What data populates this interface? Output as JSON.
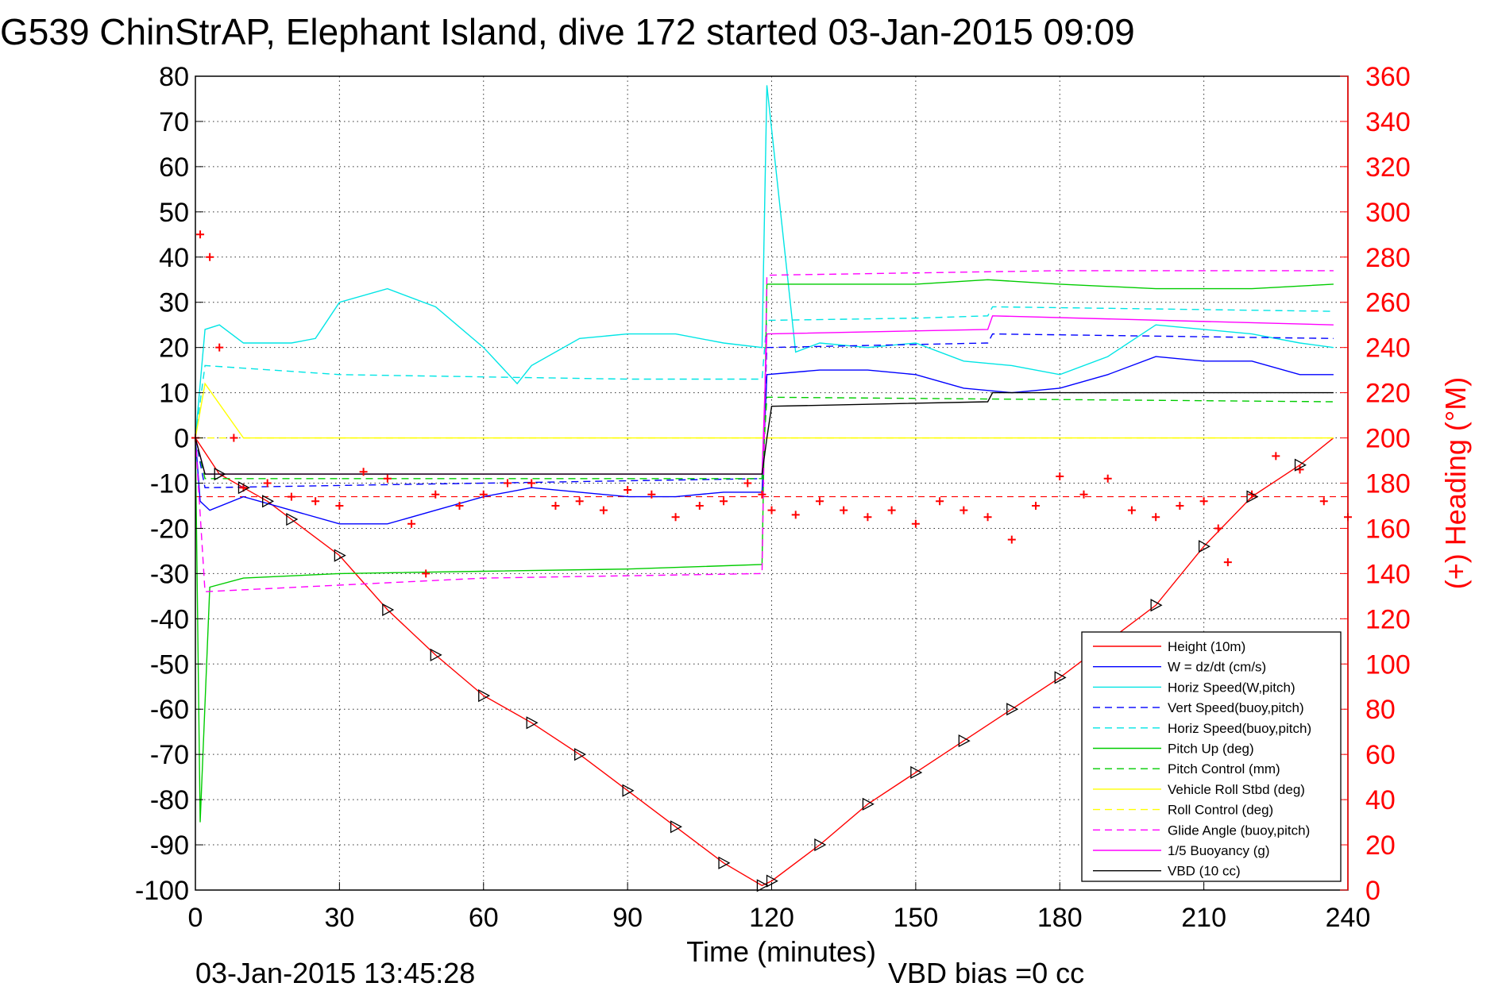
{
  "chart_data": {
    "type": "line",
    "title": "G539 ChinStrAP, Elephant Island, dive 172 started 03-Jan-2015 09:09",
    "xlabel": "Time (minutes)",
    "ylabel_right": "(+) Heading (°M)",
    "footer_left": "03-Jan-2015 13:45:28",
    "footer_right": "VBD bias =0 cc",
    "xlim": [
      0,
      240
    ],
    "ylim": [
      -100,
      80
    ],
    "y2lim": [
      0,
      360
    ],
    "x_ticks": [
      "0",
      "30",
      "60",
      "90",
      "120",
      "150",
      "180",
      "210",
      "240"
    ],
    "y_ticks": [
      "80",
      "70",
      "60",
      "50",
      "40",
      "30",
      "20",
      "10",
      "0",
      "-10",
      "-20",
      "-30",
      "-40",
      "-50",
      "-60",
      "-70",
      "-80",
      "-90",
      "-100"
    ],
    "y2_ticks": [
      "360",
      "340",
      "320",
      "300",
      "280",
      "260",
      "240",
      "220",
      "200",
      "180",
      "160",
      "140",
      "120",
      "100",
      "80",
      "60",
      "40",
      "20",
      "0"
    ],
    "grid": true,
    "legend_position": "bottom-right",
    "series": [
      {
        "name": "Height (10m)",
        "color": "#ff0000",
        "style": "solid",
        "x": [
          0,
          5,
          10,
          15,
          20,
          30,
          40,
          50,
          60,
          70,
          80,
          90,
          100,
          110,
          118,
          120,
          130,
          140,
          150,
          160,
          170,
          180,
          190,
          200,
          210,
          220,
          230,
          237
        ],
        "y": [
          0,
          -8,
          -11,
          -14,
          -18,
          -26,
          -38,
          -48,
          -57,
          -63,
          -70,
          -78,
          -86,
          -94,
          -99,
          -98,
          -90,
          -81,
          -74,
          -67,
          -60,
          -53,
          -45,
          -37,
          -24,
          -13,
          -6,
          0
        ]
      },
      {
        "name": "W = dz/dt (cm/s)",
        "color": "#0000ff",
        "style": "solid",
        "x": [
          0,
          1,
          3,
          10,
          20,
          30,
          40,
          50,
          60,
          70,
          80,
          90,
          100,
          110,
          118,
          119,
          130,
          140,
          150,
          160,
          170,
          180,
          190,
          200,
          210,
          220,
          230,
          237
        ],
        "y": [
          0,
          -14,
          -16,
          -13,
          -16,
          -19,
          -19,
          -16,
          -13,
          -11,
          -12,
          -13,
          -13,
          -12,
          -12,
          14,
          15,
          15,
          14,
          11,
          10,
          11,
          14,
          18,
          17,
          17,
          14,
          14
        ]
      },
      {
        "name": "Horiz Speed(W,pitch)",
        "color": "#00e5e5",
        "style": "solid",
        "x": [
          0,
          2,
          5,
          10,
          20,
          25,
          30,
          40,
          50,
          60,
          67,
          70,
          80,
          90,
          100,
          110,
          118,
          119,
          125,
          130,
          140,
          150,
          160,
          170,
          180,
          190,
          200,
          210,
          220,
          230,
          237
        ],
        "y": [
          0,
          24,
          25,
          21,
          21,
          22,
          30,
          33,
          29,
          20,
          12,
          16,
          22,
          23,
          23,
          21,
          20,
          78,
          19,
          21,
          20,
          21,
          17,
          16,
          14,
          18,
          25,
          24,
          23,
          21,
          20
        ]
      },
      {
        "name": "Vert Speed(buoy,pitch)",
        "color": "#0000ff",
        "style": "dashed",
        "x": [
          0,
          2,
          118,
          119,
          165,
          166,
          237
        ],
        "y": [
          0,
          -11,
          -9,
          20,
          21,
          23,
          22
        ]
      },
      {
        "name": "Horiz Speed(buoy,pitch)",
        "color": "#00e5e5",
        "style": "dashed",
        "x": [
          0,
          2,
          30,
          60,
          90,
          118,
          119,
          150,
          165,
          166,
          237
        ],
        "y": [
          0,
          16,
          14,
          13.5,
          13,
          13,
          26,
          26.5,
          27,
          29,
          28
        ]
      },
      {
        "name": "Pitch Up (deg)",
        "color": "#00cc00",
        "style": "solid",
        "x": [
          0,
          1,
          3,
          10,
          30,
          60,
          90,
          118,
          119,
          130,
          150,
          165,
          180,
          200,
          220,
          237
        ],
        "y": [
          0,
          -85,
          -33,
          -31,
          -30,
          -29.5,
          -29,
          -28,
          34,
          34,
          34,
          35,
          34,
          33,
          33,
          34
        ]
      },
      {
        "name": "Pitch Control (mm)",
        "color": "#00cc00",
        "style": "dashed",
        "x": [
          0,
          2,
          118,
          119,
          237
        ],
        "y": [
          0,
          -9,
          -9,
          9,
          8
        ]
      },
      {
        "name": "Vehicle Roll Stbd (deg)",
        "color": "#ffff00",
        "style": "solid",
        "x": [
          0,
          2,
          10,
          30,
          60,
          90,
          118,
          119,
          150,
          180,
          210,
          237
        ],
        "y": [
          0,
          12,
          0,
          0,
          0,
          0,
          0,
          0,
          0,
          0,
          0,
          0
        ]
      },
      {
        "name": "Roll Control (deg)",
        "color": "#ffff00",
        "style": "dashed",
        "x": [
          0,
          237
        ],
        "y": [
          0,
          0
        ]
      },
      {
        "name": "Glide Angle (buoy,pitch)",
        "color": "#ff00ff",
        "style": "dashed",
        "x": [
          0,
          2,
          60,
          118,
          119,
          180,
          237
        ],
        "y": [
          0,
          -34,
          -31,
          -30,
          36,
          37,
          37
        ]
      },
      {
        "name": "1/5 Buoyancy (g)",
        "color": "#ff00ff",
        "style": "solid",
        "x": [
          0,
          2,
          118,
          119,
          165,
          166,
          237
        ],
        "y": [
          0,
          -8,
          -8,
          23,
          24,
          27,
          25
        ]
      },
      {
        "name": "VBD (10 cc)",
        "color": "#000000",
        "style": "solid",
        "x": [
          0,
          2,
          118,
          119,
          120,
          165,
          166,
          237
        ],
        "y": [
          0,
          -8,
          -8,
          0,
          7,
          8,
          10,
          10
        ]
      },
      {
        "name": "Heading",
        "color": "#ff0000",
        "style": "plus",
        "axis": "right",
        "x": [
          0,
          1,
          3,
          5,
          8,
          10,
          15,
          20,
          25,
          30,
          35,
          40,
          45,
          48,
          50,
          55,
          60,
          65,
          70,
          75,
          80,
          85,
          90,
          95,
          100,
          105,
          110,
          115,
          118,
          120,
          125,
          130,
          135,
          140,
          145,
          150,
          155,
          160,
          165,
          170,
          175,
          180,
          185,
          190,
          195,
          200,
          205,
          210,
          213,
          215,
          220,
          225,
          230,
          235,
          240
        ],
        "y": [
          200,
          290,
          280,
          240,
          200,
          178,
          180,
          174,
          172,
          170,
          185,
          182,
          162,
          140,
          175,
          170,
          175,
          180,
          180,
          170,
          172,
          168,
          177,
          175,
          165,
          170,
          172,
          180,
          175,
          168,
          166,
          172,
          168,
          165,
          168,
          162,
          172,
          168,
          165,
          155,
          170,
          183,
          175,
          182,
          168,
          165,
          170,
          172,
          160,
          145,
          175,
          192,
          186,
          172,
          165
        ]
      }
    ],
    "dashed_reference_y": -13
  }
}
